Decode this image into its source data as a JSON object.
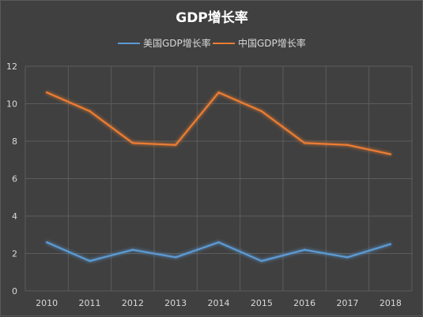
{
  "chart_data": {
    "type": "line",
    "title": "GDP增长率",
    "categories": [
      "2010",
      "2011",
      "2012",
      "2013",
      "2014",
      "2015",
      "2016",
      "2017",
      "2018"
    ],
    "series": [
      {
        "name": "美国GDP增长率",
        "color": "#5b9bd5",
        "values": [
          2.6,
          1.6,
          2.2,
          1.8,
          2.6,
          1.6,
          2.2,
          1.8,
          2.5
        ]
      },
      {
        "name": "中国GDP增长率",
        "color": "#ed7d31",
        "values": [
          10.6,
          9.6,
          7.9,
          7.8,
          10.6,
          9.6,
          7.9,
          7.8,
          7.3
        ]
      }
    ],
    "ylim": [
      0,
      12
    ],
    "yticks": [
      "0",
      "2",
      "4",
      "6",
      "8",
      "10",
      "12"
    ],
    "grid": true,
    "legend_position": "top"
  }
}
